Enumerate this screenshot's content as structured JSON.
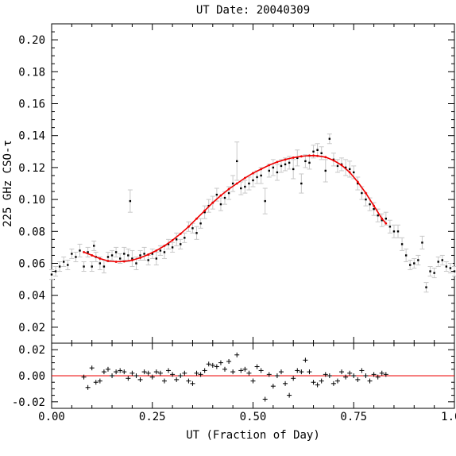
{
  "chart_data": {
    "type": "scatter",
    "title": "UT Date: 20040309",
    "xlabel": "UT (Fraction of Day)",
    "ylabel": "225 GHz CSO-τ",
    "xlim": [
      0.0,
      1.0
    ],
    "ylim": [
      0.01,
      0.21
    ],
    "xticks": [
      "0.00",
      "0.25",
      "0.50",
      "0.75",
      "1.00"
    ],
    "yticks": [
      "0.02",
      "0.04",
      "0.06",
      "0.08",
      "0.10",
      "0.12",
      "0.14",
      "0.16",
      "0.18",
      "0.20"
    ],
    "colors": {
      "data": "#000000",
      "errorbar": "#c8c8c8",
      "fit": "#ee0000"
    },
    "series": [
      {
        "type": "scatter_with_errorbars",
        "points": [
          [
            0.0,
            0.053,
            0.003
          ],
          [
            0.01,
            0.055,
            0.003
          ],
          [
            0.02,
            0.058,
            0.003
          ],
          [
            0.03,
            0.061,
            0.003
          ],
          [
            0.04,
            0.059,
            0.003
          ],
          [
            0.05,
            0.066,
            0.003
          ],
          [
            0.06,
            0.064,
            0.003
          ],
          [
            0.07,
            0.068,
            0.004
          ],
          [
            0.08,
            0.058,
            0.003
          ],
          [
            0.09,
            0.067,
            0.003
          ],
          [
            0.1,
            0.058,
            0.003
          ],
          [
            0.105,
            0.071,
            0.003
          ],
          [
            0.11,
            0.064,
            0.003
          ],
          [
            0.12,
            0.06,
            0.004
          ],
          [
            0.13,
            0.058,
            0.004
          ],
          [
            0.14,
            0.064,
            0.003
          ],
          [
            0.15,
            0.065,
            0.003
          ],
          [
            0.16,
            0.067,
            0.003
          ],
          [
            0.17,
            0.063,
            0.003
          ],
          [
            0.18,
            0.066,
            0.004
          ],
          [
            0.19,
            0.065,
            0.004
          ],
          [
            0.195,
            0.099,
            0.007
          ],
          [
            0.2,
            0.063,
            0.005
          ],
          [
            0.21,
            0.06,
            0.004
          ],
          [
            0.22,
            0.065,
            0.003
          ],
          [
            0.23,
            0.066,
            0.004
          ],
          [
            0.24,
            0.062,
            0.003
          ],
          [
            0.25,
            0.066,
            0.003
          ],
          [
            0.26,
            0.063,
            0.004
          ],
          [
            0.27,
            0.068,
            0.003
          ],
          [
            0.28,
            0.067,
            0.004
          ],
          [
            0.29,
            0.072,
            0.003
          ],
          [
            0.3,
            0.07,
            0.003
          ],
          [
            0.31,
            0.075,
            0.004
          ],
          [
            0.32,
            0.072,
            0.003
          ],
          [
            0.33,
            0.076,
            0.003
          ],
          [
            0.34,
            0.083,
            0.003
          ],
          [
            0.35,
            0.082,
            0.003
          ],
          [
            0.36,
            0.079,
            0.004
          ],
          [
            0.37,
            0.085,
            0.003
          ],
          [
            0.38,
            0.092,
            0.004
          ],
          [
            0.39,
            0.096,
            0.004
          ],
          [
            0.4,
            0.098,
            0.004
          ],
          [
            0.41,
            0.103,
            0.004
          ],
          [
            0.42,
            0.097,
            0.004
          ],
          [
            0.43,
            0.101,
            0.004
          ],
          [
            0.44,
            0.104,
            0.004
          ],
          [
            0.45,
            0.11,
            0.005
          ],
          [
            0.46,
            0.124,
            0.012
          ],
          [
            0.47,
            0.107,
            0.004
          ],
          [
            0.48,
            0.108,
            0.004
          ],
          [
            0.49,
            0.11,
            0.004
          ],
          [
            0.5,
            0.112,
            0.004
          ],
          [
            0.51,
            0.114,
            0.004
          ],
          [
            0.52,
            0.115,
            0.005
          ],
          [
            0.53,
            0.099,
            0.008
          ],
          [
            0.54,
            0.118,
            0.004
          ],
          [
            0.55,
            0.12,
            0.005
          ],
          [
            0.56,
            0.117,
            0.005
          ],
          [
            0.57,
            0.121,
            0.004
          ],
          [
            0.58,
            0.122,
            0.004
          ],
          [
            0.59,
            0.123,
            0.004
          ],
          [
            0.6,
            0.119,
            0.006
          ],
          [
            0.61,
            0.126,
            0.005
          ],
          [
            0.62,
            0.11,
            0.006
          ],
          [
            0.63,
            0.124,
            0.004
          ],
          [
            0.64,
            0.123,
            0.004
          ],
          [
            0.65,
            0.13,
            0.004
          ],
          [
            0.66,
            0.131,
            0.004
          ],
          [
            0.67,
            0.129,
            0.004
          ],
          [
            0.68,
            0.118,
            0.007
          ],
          [
            0.69,
            0.138,
            0.003
          ],
          [
            0.7,
            0.125,
            0.004
          ],
          [
            0.71,
            0.121,
            0.004
          ],
          [
            0.72,
            0.122,
            0.004
          ],
          [
            0.73,
            0.12,
            0.005
          ],
          [
            0.74,
            0.119,
            0.005
          ],
          [
            0.75,
            0.117,
            0.004
          ],
          [
            0.76,
            0.11,
            0.004
          ],
          [
            0.77,
            0.104,
            0.004
          ],
          [
            0.78,
            0.1,
            0.004
          ],
          [
            0.79,
            0.097,
            0.004
          ],
          [
            0.8,
            0.094,
            0.004
          ],
          [
            0.81,
            0.09,
            0.004
          ],
          [
            0.82,
            0.087,
            0.004
          ],
          [
            0.83,
            0.088,
            0.004
          ],
          [
            0.84,
            0.083,
            0.004
          ],
          [
            0.85,
            0.08,
            0.004
          ],
          [
            0.86,
            0.08,
            0.004
          ],
          [
            0.87,
            0.072,
            0.004
          ],
          [
            0.88,
            0.065,
            0.004
          ],
          [
            0.89,
            0.059,
            0.003
          ],
          [
            0.9,
            0.06,
            0.003
          ],
          [
            0.91,
            0.062,
            0.003
          ],
          [
            0.92,
            0.073,
            0.004
          ],
          [
            0.93,
            0.045,
            0.003
          ],
          [
            0.94,
            0.055,
            0.003
          ],
          [
            0.95,
            0.054,
            0.003
          ],
          [
            0.96,
            0.061,
            0.003
          ],
          [
            0.97,
            0.062,
            0.003
          ],
          [
            0.98,
            0.058,
            0.003
          ],
          [
            0.99,
            0.057,
            0.003
          ],
          [
            1.0,
            0.055,
            0.003
          ]
        ]
      },
      {
        "type": "fit_curve",
        "x": [
          0.08,
          0.1,
          0.12,
          0.14,
          0.16,
          0.18,
          0.2,
          0.22,
          0.24,
          0.26,
          0.28,
          0.3,
          0.32,
          0.34,
          0.36,
          0.38,
          0.4,
          0.42,
          0.44,
          0.46,
          0.48,
          0.5,
          0.52,
          0.54,
          0.56,
          0.58,
          0.6,
          0.62,
          0.64,
          0.65,
          0.66,
          0.68,
          0.7,
          0.72,
          0.74,
          0.76,
          0.78,
          0.8,
          0.82,
          0.83
        ],
        "y": [
          0.067,
          0.065,
          0.063,
          0.0615,
          0.061,
          0.0612,
          0.062,
          0.0635,
          0.0655,
          0.068,
          0.071,
          0.0745,
          0.0785,
          0.083,
          0.088,
          0.093,
          0.098,
          0.1025,
          0.1065,
          0.11,
          0.1135,
          0.1165,
          0.119,
          0.1215,
          0.1235,
          0.125,
          0.1262,
          0.127,
          0.1275,
          0.1275,
          0.1273,
          0.1265,
          0.1245,
          0.1215,
          0.117,
          0.111,
          0.104,
          0.096,
          0.088,
          0.085
        ]
      }
    ],
    "residuals": {
      "ylim": [
        -0.025,
        0.025
      ],
      "yticks": [
        "0.02",
        "0.00",
        "-0.02"
      ],
      "zero_line": true,
      "x": [
        0.08,
        0.09,
        0.1,
        0.11,
        0.12,
        0.13,
        0.14,
        0.15,
        0.16,
        0.17,
        0.18,
        0.19,
        0.2,
        0.21,
        0.22,
        0.23,
        0.24,
        0.25,
        0.26,
        0.27,
        0.28,
        0.29,
        0.3,
        0.31,
        0.32,
        0.33,
        0.34,
        0.35,
        0.36,
        0.37,
        0.38,
        0.39,
        0.4,
        0.41,
        0.42,
        0.43,
        0.44,
        0.45,
        0.46,
        0.47,
        0.48,
        0.49,
        0.5,
        0.51,
        0.52,
        0.53,
        0.54,
        0.55,
        0.56,
        0.57,
        0.58,
        0.59,
        0.6,
        0.61,
        0.62,
        0.63,
        0.64,
        0.65,
        0.66,
        0.67,
        0.68,
        0.69,
        0.7,
        0.71,
        0.72,
        0.73,
        0.74,
        0.75,
        0.76,
        0.77,
        0.78,
        0.79,
        0.8,
        0.81,
        0.82,
        0.83
      ],
      "y": [
        -0.001,
        -0.009,
        0.006,
        -0.005,
        -0.004,
        0.003,
        0.005,
        0.0,
        0.003,
        0.004,
        0.003,
        -0.002,
        0.002,
        0.0,
        -0.003,
        0.003,
        0.002,
        -0.001,
        0.003,
        0.002,
        -0.004,
        0.004,
        0.001,
        -0.003,
        0.0,
        0.002,
        -0.004,
        -0.006,
        0.002,
        0.001,
        0.004,
        0.009,
        0.008,
        0.007,
        0.01,
        0.005,
        0.011,
        0.003,
        0.016,
        0.004,
        0.005,
        0.002,
        -0.004,
        0.007,
        0.004,
        -0.018,
        0.001,
        -0.008,
        0.0,
        0.003,
        -0.006,
        -0.015,
        -0.002,
        0.004,
        0.003,
        0.012,
        0.003,
        -0.005,
        -0.007,
        -0.004,
        0.001,
        0.0,
        -0.006,
        -0.004,
        0.003,
        -0.001,
        0.002,
        0.0,
        -0.003,
        0.004,
        0.0,
        -0.004,
        0.001,
        -0.001,
        0.002,
        0.001
      ]
    }
  }
}
